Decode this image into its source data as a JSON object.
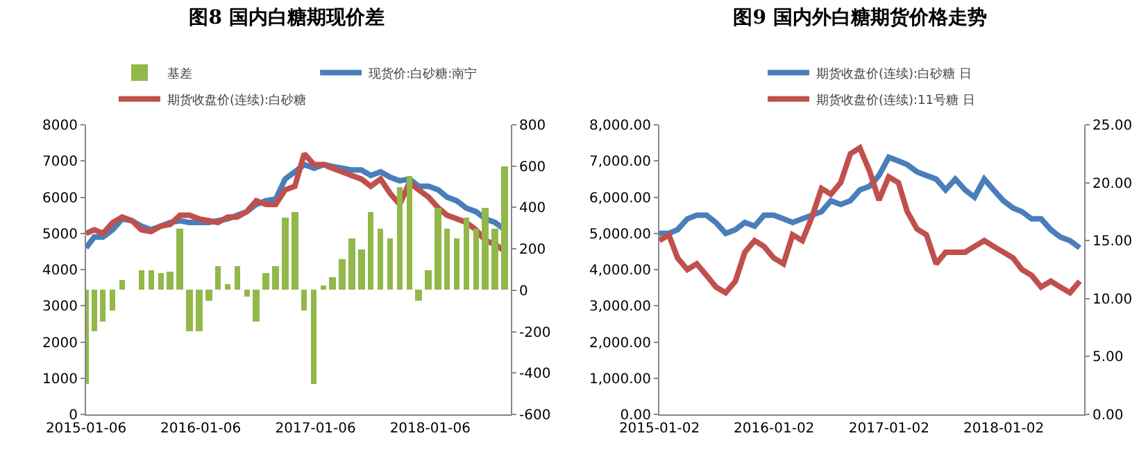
{
  "chart_data": [
    {
      "type": "line",
      "title": "图8 国内白糖期现价差",
      "legend": "top",
      "x": [
        "2015-01-06",
        "2015-02",
        "2015-03",
        "2015-04",
        "2015-05",
        "2015-06",
        "2015-07",
        "2015-08",
        "2015-09",
        "2015-10",
        "2015-11",
        "2015-12",
        "2016-01",
        "2016-02",
        "2016-03",
        "2016-04",
        "2016-05",
        "2016-06",
        "2016-07",
        "2016-08",
        "2016-09",
        "2016-10",
        "2016-11",
        "2016-12",
        "2017-01",
        "2017-02",
        "2017-03",
        "2017-04",
        "2017-05",
        "2017-06",
        "2017-07",
        "2017-08",
        "2017-09",
        "2017-10",
        "2017-11",
        "2017-12",
        "2018-01",
        "2018-02",
        "2018-03",
        "2018-04",
        "2018-05",
        "2018-06",
        "2018-07",
        "2018-08",
        "2018-09"
      ],
      "xlim": [
        "2015-01-06",
        "2018-09-20"
      ],
      "xticks": [
        "2015-01-06",
        "2016-01-06",
        "2017-01-06",
        "2018-01-06"
      ],
      "ylim": [
        0,
        8000
      ],
      "yticks": [
        0,
        1000,
        2000,
        3000,
        4000,
        5000,
        6000,
        7000,
        8000
      ],
      "y2lim": [
        -600,
        800
      ],
      "y2ticks": [
        -600,
        -400,
        -200,
        0,
        200,
        400,
        600,
        800
      ],
      "series": [
        {
          "name": "基差",
          "type": "bar",
          "axis": "y2",
          "color": "#92b84a",
          "values": [
            -450,
            -200,
            -150,
            -100,
            50,
            0,
            100,
            100,
            80,
            90,
            300,
            -200,
            -200,
            -50,
            120,
            30,
            120,
            -30,
            -150,
            80,
            120,
            350,
            380,
            -100,
            -450,
            20,
            60,
            150,
            250,
            200,
            380,
            300,
            250,
            500,
            550,
            -50,
            100,
            400,
            300,
            250,
            350,
            300,
            400,
            300,
            600
          ]
        },
        {
          "name": "现货价:白砂糖:南宁",
          "color": "#4a7ebb",
          "values": [
            4600,
            4900,
            4900,
            5100,
            5400,
            5350,
            5200,
            5100,
            5200,
            5300,
            5350,
            5300,
            5300,
            5300,
            5350,
            5400,
            5500,
            5600,
            5800,
            5900,
            5950,
            6500,
            6700,
            6900,
            6800,
            6900,
            6850,
            6800,
            6750,
            6750,
            6600,
            6700,
            6550,
            6450,
            6500,
            6300,
            6300,
            6200,
            6000,
            5900,
            5700,
            5600,
            5400,
            5300,
            5100
          ]
        },
        {
          "name": "期货收盘价(连续):白砂糖",
          "color": "#c0504d",
          "values": [
            5000,
            5100,
            5000,
            5300,
            5450,
            5350,
            5100,
            5050,
            5200,
            5250,
            5500,
            5500,
            5400,
            5350,
            5300,
            5450,
            5450,
            5600,
            5900,
            5800,
            5800,
            6200,
            6300,
            7200,
            6900,
            6900,
            6800,
            6700,
            6600,
            6500,
            6300,
            6500,
            6100,
            5800,
            6400,
            6200,
            6000,
            5700,
            5500,
            5400,
            5300,
            5100,
            4800,
            4700,
            4500
          ]
        }
      ]
    },
    {
      "type": "line",
      "title": "图9 国内外白糖期货价格走势",
      "legend": "top",
      "x": [
        "2015-01-02",
        "2015-02",
        "2015-03",
        "2015-04",
        "2015-05",
        "2015-06",
        "2015-07",
        "2015-08",
        "2015-09",
        "2015-10",
        "2015-11",
        "2015-12",
        "2016-01",
        "2016-02",
        "2016-03",
        "2016-04",
        "2016-05",
        "2016-06",
        "2016-07",
        "2016-08",
        "2016-09",
        "2016-10",
        "2016-11",
        "2016-12",
        "2017-01",
        "2017-02",
        "2017-03",
        "2017-04",
        "2017-05",
        "2017-06",
        "2017-07",
        "2017-08",
        "2017-09",
        "2017-10",
        "2017-11",
        "2017-12",
        "2018-01",
        "2018-02",
        "2018-03",
        "2018-04",
        "2018-05",
        "2018-06",
        "2018-07",
        "2018-08",
        "2018-09"
      ],
      "xlim": [
        "2015-01-02",
        "2018-09-15"
      ],
      "xticks": [
        "2015-01-02",
        "2016-01-02",
        "2017-01-02",
        "2018-01-02"
      ],
      "ylim": [
        0,
        8000
      ],
      "yticks": [
        {
          "value": 0,
          "label": "0.00"
        },
        {
          "value": 1000,
          "label": "1,000.00"
        },
        {
          "value": 2000,
          "label": "2,000.00"
        },
        {
          "value": 3000,
          "label": "3,000.00"
        },
        {
          "value": 4000,
          "label": "4,000.00"
        },
        {
          "value": 5000,
          "label": "5,000.00"
        },
        {
          "value": 6000,
          "label": "6,000.00"
        },
        {
          "value": 7000,
          "label": "7,000.00"
        },
        {
          "value": 8000,
          "label": "8,000.00"
        }
      ],
      "y2lim": [
        0,
        25
      ],
      "y2ticks": [
        {
          "value": 0,
          "label": "0.00"
        },
        {
          "value": 5,
          "label": "5.00"
        },
        {
          "value": 10,
          "label": "10.00"
        },
        {
          "value": 15,
          "label": "15.00"
        },
        {
          "value": 20,
          "label": "20.00"
        },
        {
          "value": 25,
          "label": "25.00"
        }
      ],
      "series": [
        {
          "name": "期货收盘价(连续):白砂糖 日",
          "color": "#4a7ebb",
          "values": [
            5000,
            5000,
            5100,
            5400,
            5500,
            5500,
            5300,
            5000,
            5100,
            5300,
            5200,
            5500,
            5500,
            5400,
            5300,
            5400,
            5500,
            5600,
            5900,
            5800,
            5900,
            6200,
            6300,
            6600,
            7100,
            7000,
            6900,
            6700,
            6600,
            6500,
            6200,
            6500,
            6200,
            6000,
            6500,
            6200,
            5900,
            5700,
            5600,
            5400,
            5400,
            5100,
            4900,
            4800,
            4600
          ]
        },
        {
          "name": "期货收盘价(连续):11号糖 日",
          "color": "#c0504d",
          "axis": "y2",
          "values": [
            15,
            15.5,
            13.5,
            12.5,
            13,
            12,
            11,
            10.5,
            11.5,
            14,
            15,
            14.5,
            13.5,
            13,
            15.5,
            15,
            17,
            19.5,
            19,
            20,
            22.5,
            23,
            21,
            18.5,
            20.5,
            20,
            17.5,
            16,
            15.5,
            13,
            14,
            14,
            14,
            14.5,
            15,
            14.5,
            14,
            13.5,
            12.5,
            12,
            11,
            11.5,
            11,
            10.5,
            11.5
          ]
        }
      ]
    }
  ]
}
